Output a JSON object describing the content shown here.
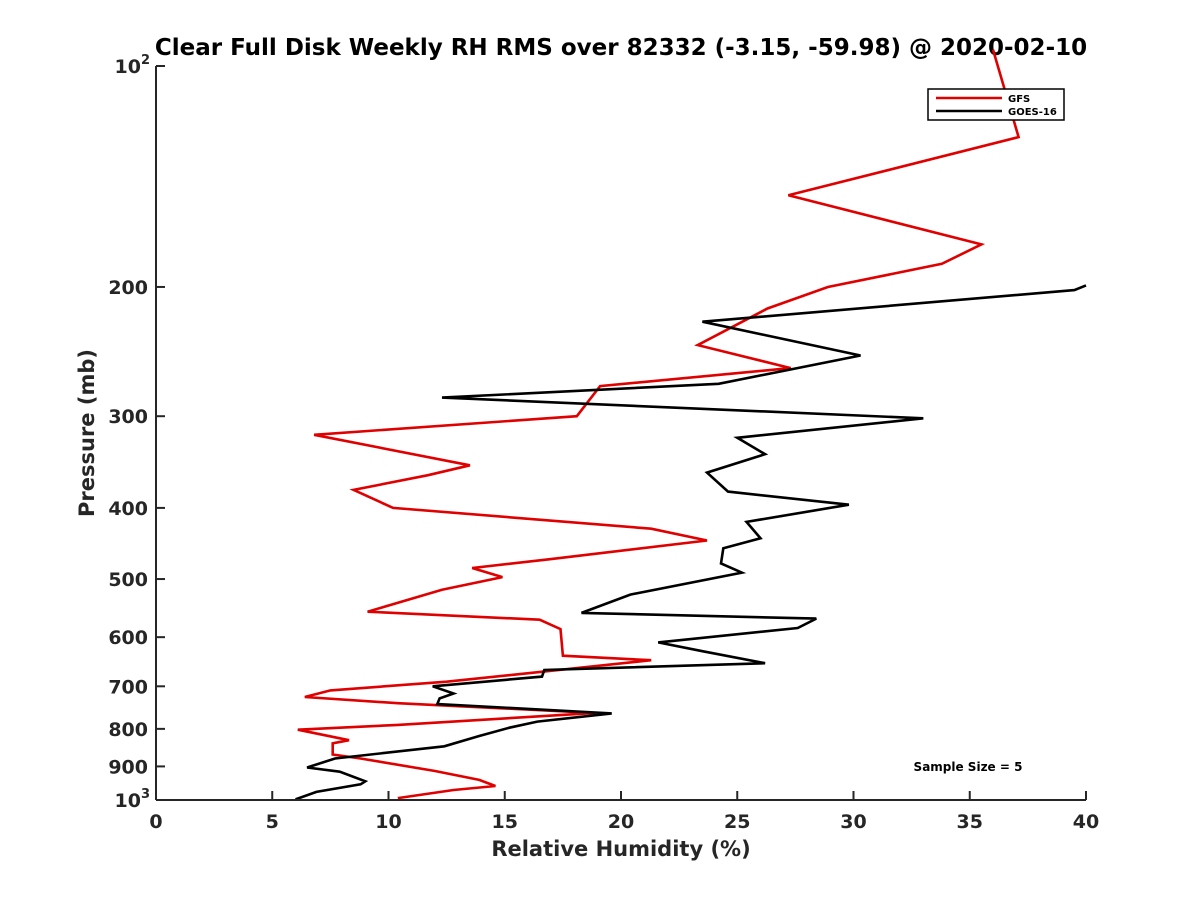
{
  "chart_data": {
    "type": "line",
    "title": "Clear Full Disk Weekly RH RMS over 82332 (-3.15, -59.98) @ 2020-02-10",
    "xlabel": "Relative Humidity (%)",
    "ylabel": "Pressure (mb)",
    "xlim": [
      0,
      40
    ],
    "ylim": [
      100,
      1000
    ],
    "y_scale": "log",
    "y_reversed": true,
    "x_ticks": [
      "0",
      "5",
      "10",
      "15",
      "20",
      "25",
      "30",
      "35",
      "40"
    ],
    "y_ticks": [
      {
        "p": 100,
        "base": "10",
        "exp": "2"
      },
      {
        "p": 200,
        "base": "200",
        "exp": ""
      },
      {
        "p": 300,
        "base": "300",
        "exp": ""
      },
      {
        "p": 400,
        "base": "400",
        "exp": ""
      },
      {
        "p": 500,
        "base": "500",
        "exp": ""
      },
      {
        "p": 600,
        "base": "600",
        "exp": ""
      },
      {
        "p": 700,
        "base": "700",
        "exp": ""
      },
      {
        "p": 800,
        "base": "800",
        "exp": ""
      },
      {
        "p": 900,
        "base": "900",
        "exp": ""
      },
      {
        "p": 1000,
        "base": "10",
        "exp": "3"
      }
    ],
    "grid": false,
    "legend_position": "top-right",
    "annotation": "Sample Size = 5",
    "series": [
      {
        "name": "GFS",
        "color": "#e00000",
        "points": [
          [
            36,
            95
          ],
          [
            37.1,
            125
          ],
          [
            27.2,
            150
          ],
          [
            35.5,
            175
          ],
          [
            33.8,
            186
          ],
          [
            28.9,
            200
          ],
          [
            26.3,
            214
          ],
          [
            23.3,
            240
          ],
          [
            27.3,
            258
          ],
          [
            19.1,
            273
          ],
          [
            18.1,
            300
          ],
          [
            6.8,
            318
          ],
          [
            13.5,
            350
          ],
          [
            11.7,
            361
          ],
          [
            8.5,
            378
          ],
          [
            10.2,
            400
          ],
          [
            21.3,
            427
          ],
          [
            23.7,
            443
          ],
          [
            16.9,
            470
          ],
          [
            13.6,
            483
          ],
          [
            14.9,
            497
          ],
          [
            12.3,
            517
          ],
          [
            9.1,
            554
          ],
          [
            16.5,
            568
          ],
          [
            17.4,
            585
          ],
          [
            17.5,
            636
          ],
          [
            21.3,
            645
          ],
          [
            15.2,
            676
          ],
          [
            12.5,
            690
          ],
          [
            7.5,
            709
          ],
          [
            6.4,
            724
          ],
          [
            10.4,
            738
          ],
          [
            18.9,
            761
          ],
          [
            10.4,
            790
          ],
          [
            6.1,
            802
          ],
          [
            8.3,
            829
          ],
          [
            7.6,
            837
          ],
          [
            7.6,
            867
          ],
          [
            8.8,
            878
          ],
          [
            12,
            913
          ],
          [
            13.9,
            939
          ],
          [
            14.6,
            957
          ],
          [
            12.8,
            969
          ],
          [
            10.4,
            994
          ]
        ]
      },
      {
        "name": "GOES-16",
        "color": "#000000",
        "points": [
          [
            40,
            199
          ],
          [
            39.5,
            202
          ],
          [
            23.5,
            223
          ],
          [
            30.3,
            248
          ],
          [
            24.2,
            271
          ],
          [
            12.3,
            283
          ],
          [
            33,
            302
          ],
          [
            25,
            321
          ],
          [
            26.2,
            338
          ],
          [
            23.7,
            358
          ],
          [
            24.6,
            380
          ],
          [
            29.8,
            396
          ],
          [
            25.4,
            418
          ],
          [
            26,
            440
          ],
          [
            24.4,
            454
          ],
          [
            24.3,
            476
          ],
          [
            25.2,
            490
          ],
          [
            20.4,
            525
          ],
          [
            18.3,
            556
          ],
          [
            28.4,
            566
          ],
          [
            27.6,
            583
          ],
          [
            21.6,
            610
          ],
          [
            23.5,
            627
          ],
          [
            26.2,
            651
          ],
          [
            16.7,
            665
          ],
          [
            16.6,
            679
          ],
          [
            11.9,
            700
          ],
          [
            12.8,
            716
          ],
          [
            12.2,
            727
          ],
          [
            12.1,
            740
          ],
          [
            19.6,
            762
          ],
          [
            16.4,
            782
          ],
          [
            15.2,
            797
          ],
          [
            13.9,
            818
          ],
          [
            12.4,
            845
          ],
          [
            7.7,
            878
          ],
          [
            6.5,
            903
          ],
          [
            7.9,
            915
          ],
          [
            9,
            943
          ],
          [
            8.8,
            952
          ],
          [
            6.9,
            975
          ],
          [
            6,
            998
          ]
        ]
      }
    ]
  }
}
